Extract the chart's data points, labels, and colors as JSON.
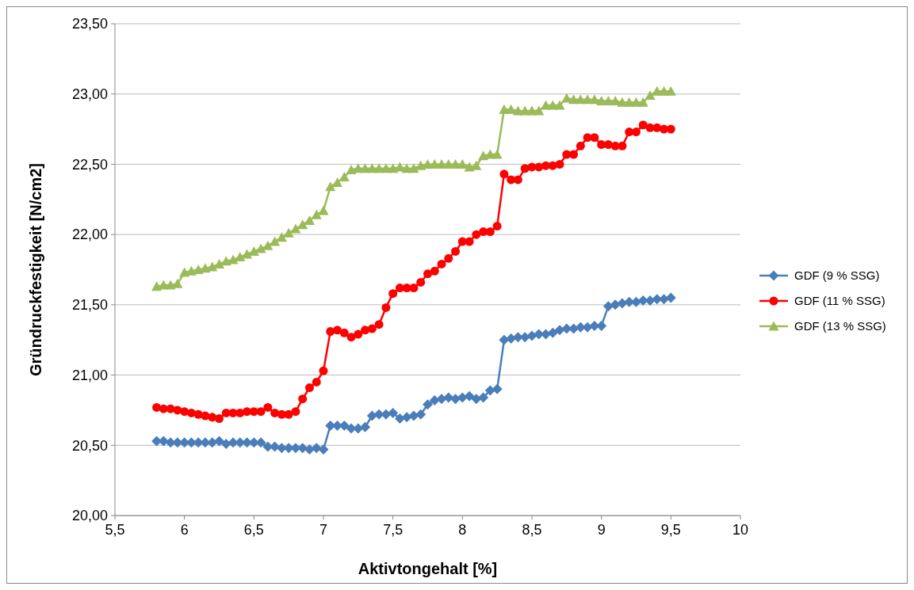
{
  "chart_data": {
    "type": "line",
    "xlabel": "Aktivtongehalt [%]",
    "ylabel": "Gründruckfestigkeit [N/cm2]",
    "x": [
      5.8,
      5.85,
      5.9,
      5.95,
      6.0,
      6.05,
      6.1,
      6.15,
      6.2,
      6.25,
      6.3,
      6.35,
      6.4,
      6.45,
      6.5,
      6.55,
      6.6,
      6.65,
      6.7,
      6.75,
      6.8,
      6.85,
      6.9,
      6.95,
      7.0,
      7.05,
      7.1,
      7.15,
      7.2,
      7.25,
      7.3,
      7.35,
      7.4,
      7.45,
      7.5,
      7.55,
      7.6,
      7.65,
      7.7,
      7.75,
      7.8,
      7.85,
      7.9,
      7.95,
      8.0,
      8.05,
      8.1,
      8.15,
      8.2,
      8.25,
      8.3,
      8.35,
      8.4,
      8.45,
      8.5,
      8.55,
      8.6,
      8.65,
      8.7,
      8.75,
      8.8,
      8.85,
      8.9,
      8.95,
      9.0,
      9.05,
      9.1,
      9.15,
      9.2,
      9.25,
      9.3,
      9.35,
      9.4,
      9.45,
      9.5
    ],
    "series": [
      {
        "name": "GDF (9 % SSG)",
        "color": "#4a7ebb",
        "marker": "diamond",
        "values": [
          20.53,
          20.53,
          20.52,
          20.52,
          20.52,
          20.52,
          20.52,
          20.52,
          20.52,
          20.53,
          20.51,
          20.52,
          20.52,
          20.52,
          20.52,
          20.52,
          20.49,
          20.49,
          20.48,
          20.48,
          20.48,
          20.48,
          20.47,
          20.48,
          20.47,
          20.64,
          20.64,
          20.64,
          20.62,
          20.62,
          20.63,
          20.71,
          20.72,
          20.72,
          20.73,
          20.69,
          20.7,
          20.71,
          20.72,
          20.79,
          20.82,
          20.83,
          20.84,
          20.83,
          20.84,
          20.85,
          20.83,
          20.84,
          20.89,
          20.9,
          21.25,
          21.26,
          21.27,
          21.27,
          21.28,
          21.29,
          21.29,
          21.3,
          21.32,
          21.33,
          21.33,
          21.34,
          21.34,
          21.35,
          21.35,
          21.49,
          21.5,
          21.51,
          21.52,
          21.52,
          21.53,
          21.53,
          21.54,
          21.54,
          21.55
        ]
      },
      {
        "name": "GDF (11 % SSG)",
        "color": "#ff0000",
        "marker": "circle",
        "values": [
          20.77,
          20.76,
          20.76,
          20.75,
          20.74,
          20.73,
          20.72,
          20.71,
          20.7,
          20.69,
          20.73,
          20.73,
          20.73,
          20.74,
          20.74,
          20.74,
          20.77,
          20.73,
          20.72,
          20.72,
          20.74,
          20.83,
          20.91,
          20.95,
          21.03,
          21.31,
          21.32,
          21.3,
          21.27,
          21.29,
          21.32,
          21.33,
          21.36,
          21.48,
          21.58,
          21.62,
          21.62,
          21.62,
          21.66,
          21.72,
          21.74,
          21.79,
          21.83,
          21.88,
          21.95,
          21.95,
          22.0,
          22.02,
          22.02,
          22.06,
          22.43,
          22.39,
          22.39,
          22.47,
          22.48,
          22.48,
          22.49,
          22.49,
          22.5,
          22.57,
          22.57,
          22.63,
          22.69,
          22.69,
          22.64,
          22.64,
          22.63,
          22.63,
          22.73,
          22.73,
          22.78,
          22.76,
          22.76,
          22.75,
          22.75
        ]
      },
      {
        "name": "GDF (13 % SSG)",
        "color": "#9bbb59",
        "marker": "triangle",
        "values": [
          21.63,
          21.64,
          21.64,
          21.65,
          21.73,
          21.74,
          21.75,
          21.76,
          21.77,
          21.79,
          21.81,
          21.82,
          21.84,
          21.86,
          21.88,
          21.9,
          21.92,
          21.95,
          21.98,
          22.01,
          22.04,
          22.07,
          22.1,
          22.14,
          22.17,
          22.34,
          22.37,
          22.41,
          22.46,
          22.47,
          22.47,
          22.47,
          22.47,
          22.47,
          22.47,
          22.48,
          22.47,
          22.47,
          22.49,
          22.5,
          22.5,
          22.5,
          22.5,
          22.5,
          22.5,
          22.48,
          22.49,
          22.56,
          22.57,
          22.57,
          22.89,
          22.89,
          22.88,
          22.88,
          22.88,
          22.88,
          22.92,
          22.92,
          22.92,
          22.97,
          22.96,
          22.96,
          22.96,
          22.96,
          22.95,
          22.95,
          22.95,
          22.94,
          22.94,
          22.94,
          22.94,
          22.99,
          23.02,
          23.02,
          23.02
        ]
      }
    ],
    "xlim": [
      5.5,
      10
    ],
    "xticks": [
      {
        "value": 5.5,
        "label": "5,5"
      },
      6,
      {
        "value": 6.5,
        "label": "6,5"
      },
      7,
      {
        "value": 7.5,
        "label": "7,5"
      },
      8,
      {
        "value": 8.5,
        "label": "8,5"
      },
      9,
      {
        "value": 9.5,
        "label": "9,5"
      },
      10
    ],
    "ylim": [
      20,
      23.5
    ],
    "yticks": [
      {
        "value": 20,
        "label": "20,00"
      },
      {
        "value": 20.5,
        "label": "20,50"
      },
      {
        "value": 21,
        "label": "21,00"
      },
      {
        "value": 21.5,
        "label": "21,50"
      },
      {
        "value": 22,
        "label": "22,00"
      },
      {
        "value": 22.5,
        "label": "22,50"
      },
      {
        "value": 23,
        "label": "23,00"
      },
      {
        "value": 23.5,
        "label": "23,50"
      }
    ],
    "grid": "y",
    "legend": "right",
    "line_style": "solid"
  }
}
